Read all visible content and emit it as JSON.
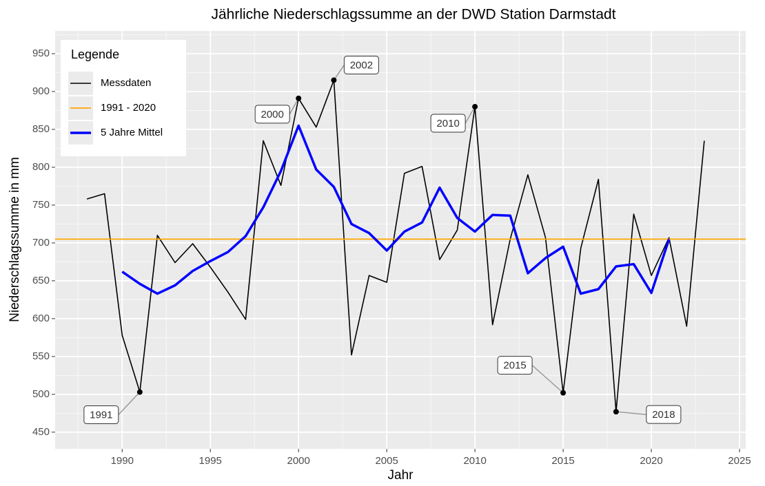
{
  "chart_data": {
    "type": "line",
    "title": "Jährliche Niederschlagssumme an der DWD Station Darmstadt",
    "xlabel": "Jahr",
    "ylabel": "Niederschlagssumme in mm",
    "legend_title": "Legende",
    "legend": "top-left",
    "grid": true,
    "x": [
      1988,
      1989,
      1990,
      1991,
      1992,
      1993,
      1994,
      1995,
      1996,
      1997,
      1998,
      1999,
      2000,
      2001,
      2002,
      2003,
      2004,
      2005,
      2006,
      2007,
      2008,
      2009,
      2010,
      2011,
      2012,
      2013,
      2014,
      2015,
      2016,
      2017,
      2018,
      2019,
      2020,
      2021,
      2022,
      2023
    ],
    "series": [
      {
        "name": "Messdaten",
        "color": "#000000",
        "values": [
          758,
          765,
          578,
          503,
          710,
          674,
          699,
          668,
          635,
          599,
          835,
          776,
          891,
          853,
          915,
          552,
          657,
          648,
          792,
          801,
          678,
          717,
          880,
          592,
          705,
          790,
          707,
          502,
          693,
          784,
          477,
          738,
          657,
          707,
          590,
          835
        ]
      },
      {
        "name": "5 Jahre Mittel",
        "color": "#0000ff",
        "values": [
          null,
          null,
          662,
          646,
          633,
          644,
          663,
          676,
          688,
          709,
          747,
          795,
          855,
          797,
          774,
          725,
          713,
          690,
          715,
          727,
          773,
          733,
          715,
          737,
          736,
          660,
          680,
          695,
          633,
          639,
          669,
          672,
          634,
          705,
          null,
          null
        ]
      }
    ],
    "reference_line": {
      "name": "1991 - 2020",
      "color": "#ffa500",
      "value": 705
    },
    "annotations": [
      {
        "label": "1991",
        "x": 1991
      },
      {
        "label": "2000",
        "x": 2000
      },
      {
        "label": "2002",
        "x": 2002
      },
      {
        "label": "2010",
        "x": 2010
      },
      {
        "label": "2015",
        "x": 2015
      },
      {
        "label": "2018",
        "x": 2018
      }
    ],
    "xlim": [
      1986.2,
      2025.35
    ],
    "ylim": [
      428,
      980
    ],
    "xticks": [
      1990,
      1995,
      2000,
      2005,
      2010,
      2015,
      2020,
      2025
    ],
    "yticks": [
      450,
      500,
      550,
      600,
      650,
      700,
      750,
      800,
      850,
      900,
      950
    ]
  }
}
